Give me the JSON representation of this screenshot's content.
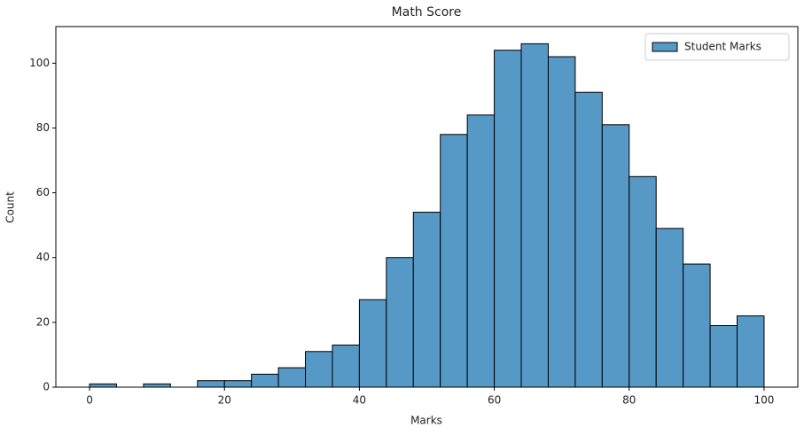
{
  "chart_data": {
    "type": "histogram",
    "title": "Math Score",
    "xlabel": "Marks",
    "ylabel": "Count",
    "bins": [
      0,
      4,
      8,
      12,
      16,
      20,
      24,
      28,
      32,
      36,
      40,
      44,
      48,
      52,
      56,
      60,
      64,
      68,
      72,
      76,
      80,
      84,
      88,
      92,
      96,
      100
    ],
    "series": [
      {
        "name": "Student Marks",
        "color": "#5799c6",
        "values": [
          1,
          0,
          1,
          0,
          2,
          2,
          4,
          6,
          11,
          13,
          27,
          40,
          54,
          78,
          84,
          104,
          106,
          102,
          91,
          81,
          65,
          49,
          38,
          19,
          22
        ]
      }
    ],
    "xlim": [
      -5,
      105
    ],
    "xticks": [
      0,
      20,
      40,
      60,
      80,
      100
    ],
    "ylim": [
      0,
      111.3
    ],
    "yticks": [
      0,
      20,
      40,
      60,
      80,
      100
    ],
    "grid": false,
    "legend": "upper right"
  }
}
